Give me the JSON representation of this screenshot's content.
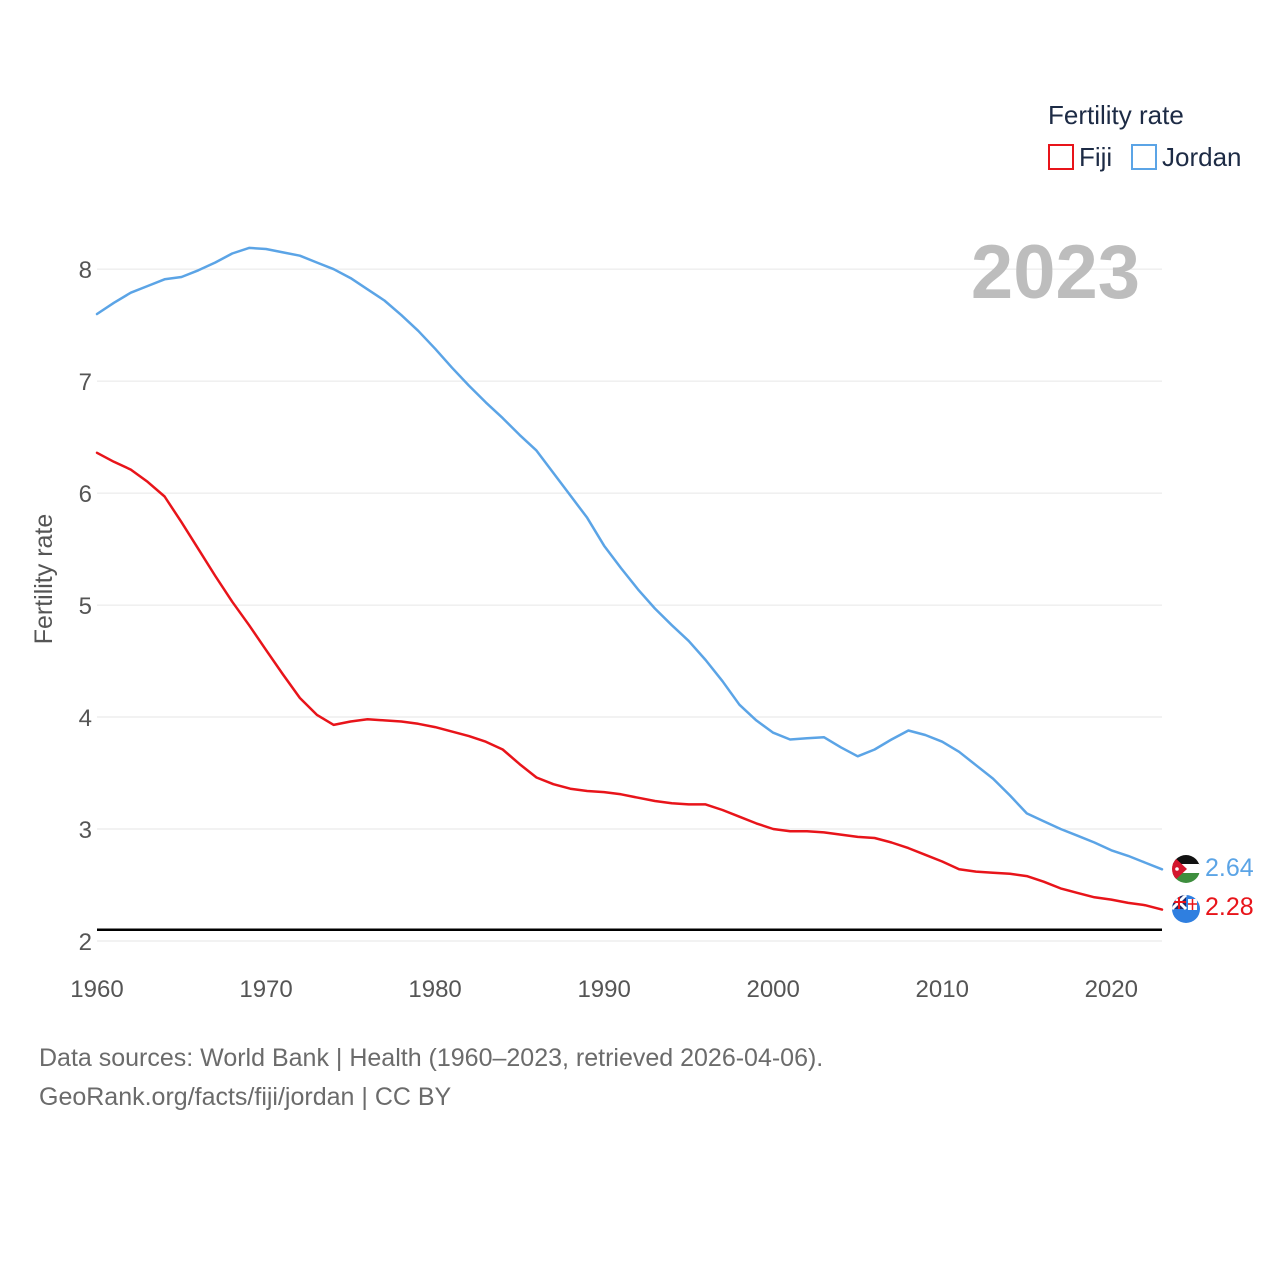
{
  "chart_data": {
    "type": "line",
    "year_overlay": "2023",
    "ylabel": "Fertility rate",
    "xlabel": "",
    "xlim": [
      1960,
      2023
    ],
    "ylim": [
      2,
      8.6
    ],
    "x_ticks": [
      1960,
      1970,
      1980,
      1990,
      2000,
      2010,
      2020
    ],
    "y_ticks": [
      2,
      3,
      4,
      5,
      6,
      7,
      8
    ],
    "grid": true,
    "legend": {
      "title": "Fertility rate",
      "position": "top-right"
    },
    "reference_line": {
      "y": 2.1,
      "color": "#000000"
    },
    "x": [
      1960,
      1961,
      1962,
      1963,
      1964,
      1965,
      1966,
      1967,
      1968,
      1969,
      1970,
      1971,
      1972,
      1973,
      1974,
      1975,
      1976,
      1977,
      1978,
      1979,
      1980,
      1981,
      1982,
      1983,
      1984,
      1985,
      1986,
      1987,
      1988,
      1989,
      1990,
      1991,
      1992,
      1993,
      1994,
      1995,
      1996,
      1997,
      1998,
      1999,
      2000,
      2001,
      2002,
      2003,
      2004,
      2005,
      2006,
      2007,
      2008,
      2009,
      2010,
      2011,
      2012,
      2013,
      2014,
      2015,
      2016,
      2017,
      2018,
      2019,
      2020,
      2021,
      2022,
      2023
    ],
    "series": [
      {
        "name": "Fiji",
        "color": "#e8141a",
        "end_value": "2.28",
        "values": [
          6.36,
          6.28,
          6.21,
          6.1,
          5.97,
          5.74,
          5.5,
          5.26,
          5.03,
          4.82,
          4.6,
          4.38,
          4.17,
          4.02,
          3.93,
          3.96,
          3.98,
          3.97,
          3.96,
          3.94,
          3.91,
          3.87,
          3.83,
          3.78,
          3.71,
          3.58,
          3.46,
          3.4,
          3.36,
          3.34,
          3.33,
          3.31,
          3.28,
          3.25,
          3.23,
          3.22,
          3.22,
          3.17,
          3.11,
          3.05,
          3.0,
          2.98,
          2.98,
          2.97,
          2.95,
          2.93,
          2.92,
          2.88,
          2.83,
          2.77,
          2.71,
          2.64,
          2.62,
          2.61,
          2.6,
          2.58,
          2.53,
          2.47,
          2.43,
          2.39,
          2.37,
          2.34,
          2.32,
          2.28
        ]
      },
      {
        "name": "Jordan",
        "color": "#5ba4e6",
        "end_value": "2.64",
        "values": [
          7.6,
          7.7,
          7.79,
          7.85,
          7.91,
          7.93,
          7.99,
          8.06,
          8.14,
          8.19,
          8.18,
          8.15,
          8.12,
          8.06,
          8.0,
          7.92,
          7.82,
          7.72,
          7.59,
          7.45,
          7.29,
          7.12,
          6.96,
          6.81,
          6.67,
          6.52,
          6.38,
          6.18,
          5.98,
          5.78,
          5.53,
          5.33,
          5.14,
          4.97,
          4.82,
          4.68,
          4.51,
          4.32,
          4.11,
          3.97,
          3.86,
          3.8,
          3.81,
          3.82,
          3.73,
          3.65,
          3.71,
          3.8,
          3.88,
          3.84,
          3.78,
          3.69,
          3.57,
          3.45,
          3.3,
          3.14,
          3.07,
          3.0,
          2.94,
          2.88,
          2.81,
          2.76,
          2.7,
          2.64
        ]
      }
    ]
  },
  "footer": {
    "line1": "Data sources: World Bank | Health (1960–2023, retrieved 2026-04-06).",
    "line2": "GeoRank.org/facts/fiji/jordan | CC BY"
  }
}
